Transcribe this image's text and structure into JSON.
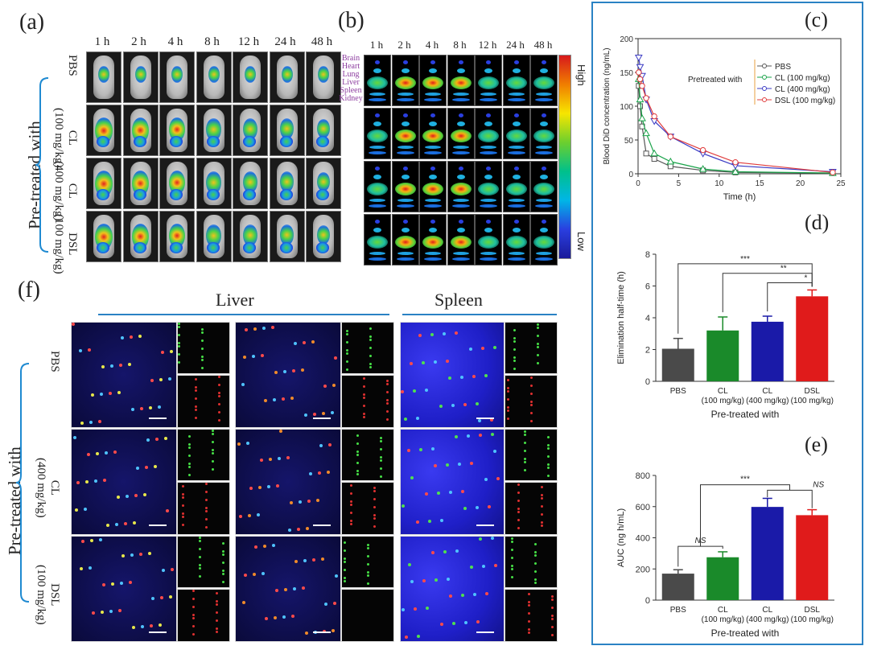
{
  "panels": {
    "a": {
      "label": "(a)",
      "time_points": [
        "1 h",
        "2 h",
        "4 h",
        "8 h",
        "12 h",
        "24 h",
        "48 h"
      ],
      "rows": [
        "PBS",
        "CL (100 mg/kg)",
        "CL (400 mg/kg)",
        "DSL (100 mg/kg)"
      ],
      "row_line1": [
        "PBS",
        "CL",
        "CL",
        "DSL"
      ],
      "row_line2": [
        "",
        "(100 mg/kg)",
        "(400 mg/kg)",
        "(100 mg/kg)"
      ],
      "group_label": "Pre-treated with"
    },
    "b": {
      "label": "(b)",
      "time_points": [
        "1 h",
        "2 h",
        "4 h",
        "8 h",
        "12 h",
        "24 h",
        "48 h"
      ],
      "organs": [
        "Brain",
        "Heart",
        "Lung",
        "Liver",
        "Spleen",
        "Kidney"
      ],
      "colorbar_high": "High",
      "colorbar_low": "Low"
    },
    "f": {
      "label": "(f)",
      "liver": "Liver",
      "spleen": "Spleen",
      "row_line1": [
        "PBS",
        "CL",
        "DSL"
      ],
      "row_line2": [
        "",
        "(400 mg/kg)",
        "(100 mg/kg)"
      ],
      "group_label": "Pre-treated with"
    }
  },
  "chart_data": [
    {
      "panel": "(c)",
      "type": "line",
      "title": "",
      "xlabel": "Time (h)",
      "ylabel": "Blood DiD concentration (ng/mL)",
      "xlim": [
        0,
        25
      ],
      "ylim": [
        0,
        200
      ],
      "xticks": [
        0,
        5,
        10,
        15,
        20,
        25
      ],
      "yticks": [
        0,
        50,
        100,
        150,
        200
      ],
      "legend_title": "Pretreated with",
      "x": [
        0.083,
        0.25,
        0.5,
        1,
        2,
        4,
        8,
        12,
        24
      ],
      "series": [
        {
          "name": "PBS",
          "color": "#555555",
          "marker": "square",
          "values": [
            130,
            100,
            70,
            30,
            22,
            11,
            5,
            2,
            1
          ]
        },
        {
          "name": "CL (100 mg/kg)",
          "color": "#1aa34a",
          "marker": "triangle-up",
          "values": [
            140,
            110,
            82,
            60,
            30,
            18,
            7,
            3,
            1
          ]
        },
        {
          "name": "CL (400 mg/kg)",
          "color": "#3b3bc4",
          "marker": "triangle-down",
          "values": [
            172,
            158,
            145,
            110,
            78,
            55,
            30,
            12,
            3
          ]
        },
        {
          "name": "DSL (100 mg/kg)",
          "color": "#e03c3c",
          "marker": "circle",
          "values": [
            150,
            140,
            130,
            112,
            85,
            55,
            35,
            17,
            2
          ]
        }
      ]
    },
    {
      "panel": "(d)",
      "type": "bar",
      "title": "",
      "xlabel": "Pre-treated with",
      "ylabel": "Elimination half-time (h)",
      "ylim": [
        0,
        8
      ],
      "yticks": [
        0,
        2,
        4,
        6,
        8
      ],
      "categories": [
        "PBS",
        "CL",
        "CL",
        "DSL"
      ],
      "category_sub": [
        "",
        "(100 mg/kg)",
        "(400 mg/kg)",
        "(100 mg/kg)"
      ],
      "values": [
        2.05,
        3.2,
        3.75,
        5.35
      ],
      "errors": [
        0.65,
        0.85,
        0.35,
        0.4
      ],
      "colors": [
        "#4a4a4a",
        "#1a8a2a",
        "#1a1aa8",
        "#e01b1b"
      ],
      "significance": [
        "***",
        "**",
        "*"
      ]
    },
    {
      "panel": "(e)",
      "type": "bar",
      "title": "",
      "xlabel": "Pre-treated with",
      "ylabel": "AUC (ng h/mL)",
      "ylim": [
        0,
        800
      ],
      "yticks": [
        0,
        200,
        400,
        600,
        800
      ],
      "categories": [
        "PBS",
        "CL",
        "CL",
        "DSL"
      ],
      "category_sub": [
        "",
        "(100 mg/kg)",
        "(400 mg/kg)",
        "(100 mg/kg)"
      ],
      "values": [
        170,
        275,
        598,
        545
      ],
      "errors": [
        25,
        35,
        55,
        35
      ],
      "colors": [
        "#4a4a4a",
        "#1a8a2a",
        "#1a1aa8",
        "#e01b1b"
      ],
      "significance": [
        "NS",
        "***",
        "NS"
      ]
    }
  ]
}
